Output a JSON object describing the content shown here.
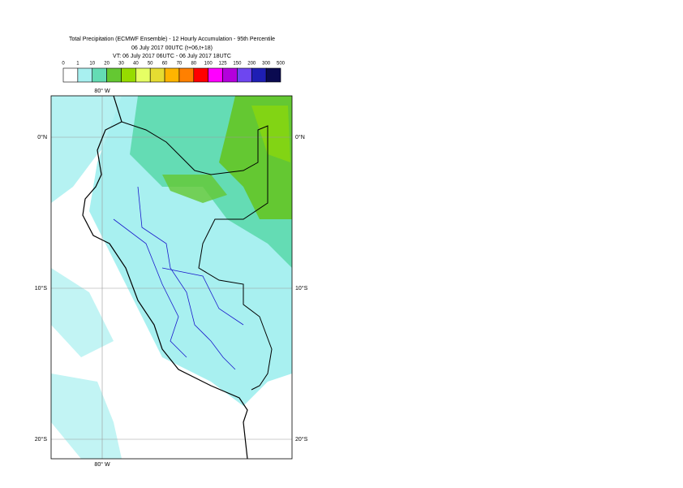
{
  "header": {
    "title": "Total Precipitation (ECMWF Ensemble) - 12 Hourly Accumulation - 95th Percentile",
    "base_time": "06 July 2017 00UTC (t+06,t+18)",
    "valid_time": "VT: 06 July 2017 06UTC - 06 July 2017 18UTC"
  },
  "colorbar": {
    "labels": [
      "0",
      "1",
      "10",
      "20",
      "30",
      "40",
      "50",
      "60",
      "70",
      "80",
      "100",
      "125",
      "150",
      "200",
      "300",
      "500"
    ],
    "colors": [
      "#ffffff",
      "#a8f0f0",
      "#64dcb4",
      "#64c832",
      "#96dc00",
      "#e6ff64",
      "#e6dc32",
      "#ffb400",
      "#ff8000",
      "#ff0000",
      "#ff00ff",
      "#b400dc",
      "#6e46f0",
      "#1e1eb4",
      "#0a0a50"
    ]
  },
  "map": {
    "lon_label": "80° W",
    "lat_labels": [
      "0°N",
      "10°S",
      "20°S"
    ]
  }
}
